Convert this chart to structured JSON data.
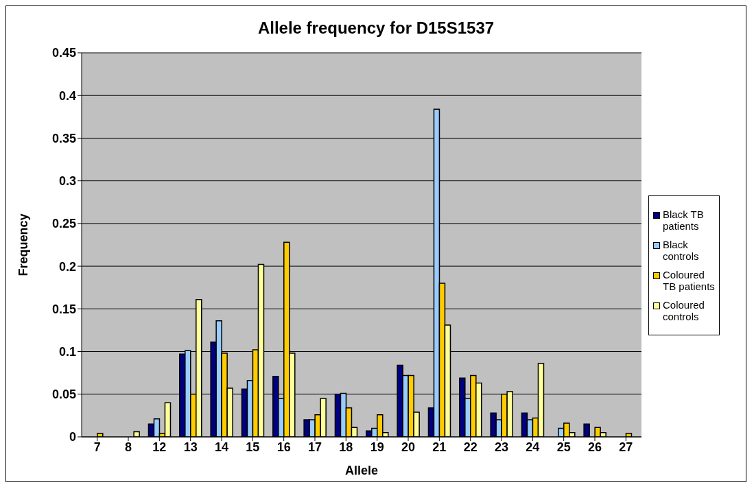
{
  "chart_data": {
    "type": "bar",
    "title": "Allele frequency for D15S1537",
    "xlabel": "Allele",
    "ylabel": "Frequency",
    "categories": [
      "7",
      "8",
      "12",
      "13",
      "14",
      "15",
      "16",
      "17",
      "18",
      "19",
      "20",
      "21",
      "22",
      "23",
      "24",
      "25",
      "26",
      "27"
    ],
    "series": [
      {
        "name": "Black TB patients",
        "color": "#000080",
        "values": [
          0,
          0,
          0.015,
          0.097,
          0.111,
          0.056,
          0.071,
          0.02,
          0.05,
          0.007,
          0.084,
          0.034,
          0.069,
          0.028,
          0.028,
          0,
          0.015,
          0
        ]
      },
      {
        "name": "Black controls",
        "color": "#99ccff",
        "values": [
          0,
          0,
          0.021,
          0.101,
          0.136,
          0.066,
          0.045,
          0.02,
          0.051,
          0.01,
          0.072,
          0.384,
          0.045,
          0.02,
          0.02,
          0.01,
          0,
          0
        ]
      },
      {
        "name": "Coloured TB patients",
        "color": "#ffcc00",
        "values": [
          0.004,
          0,
          0.004,
          0.05,
          0.098,
          0.102,
          0.228,
          0.026,
          0.034,
          0.026,
          0.072,
          0.18,
          0.072,
          0.05,
          0.022,
          0.016,
          0.011,
          0.004
        ]
      },
      {
        "name": "Coloured controls",
        "color": "#ffff99",
        "values": [
          0,
          0.006,
          0.04,
          0.161,
          0.057,
          0.202,
          0.098,
          0.045,
          0.011,
          0.005,
          0.029,
          0.131,
          0.063,
          0.053,
          0.086,
          0.005,
          0.005,
          0
        ]
      }
    ],
    "ylim": [
      0,
      0.45
    ],
    "yticks": [
      0,
      0.05,
      0.1,
      0.15,
      0.2,
      0.25,
      0.3,
      0.35,
      0.4,
      0.45
    ],
    "grid": "y",
    "legend": "right"
  }
}
